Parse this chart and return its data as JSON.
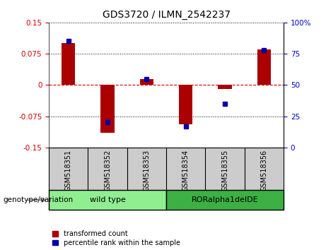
{
  "title": "GDS3720 / ILMN_2542237",
  "samples": [
    "GSM518351",
    "GSM518352",
    "GSM518353",
    "GSM518354",
    "GSM518355",
    "GSM518356"
  ],
  "red_values": [
    0.1,
    -0.115,
    0.015,
    -0.095,
    -0.01,
    0.085
  ],
  "blue_values_pct": [
    85,
    20,
    55,
    17,
    35,
    78
  ],
  "ylim_left": [
    -0.15,
    0.15
  ],
  "ylim_right": [
    0,
    100
  ],
  "yticks_left": [
    -0.15,
    -0.075,
    0,
    0.075,
    0.15
  ],
  "yticks_right": [
    0,
    25,
    50,
    75,
    100
  ],
  "groups": [
    {
      "label": "wild type",
      "indices": [
        0,
        1,
        2
      ],
      "color": "#90EE90"
    },
    {
      "label": "RORalpha1delDE",
      "indices": [
        3,
        4,
        5
      ],
      "color": "#3CB043"
    }
  ],
  "group_row_label": "genotype/variation",
  "legend_red": "transformed count",
  "legend_blue": "percentile rank within the sample",
  "bar_width": 0.35,
  "red_color": "#AA0000",
  "blue_color": "#0000AA",
  "dashed_zero_color": "#CC0000",
  "tick_label_color_left": "#CC0000",
  "tick_label_color_right": "#0000CC",
  "xlabel_bg": "#CCCCCC",
  "fig_width": 4.61,
  "fig_height": 3.54
}
